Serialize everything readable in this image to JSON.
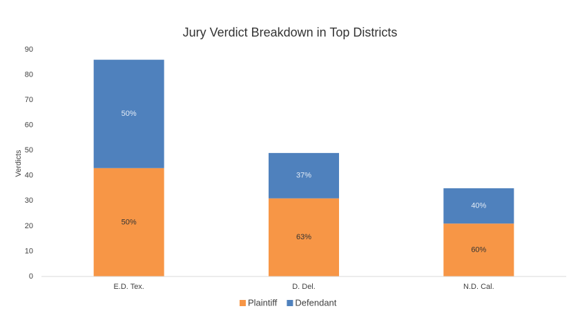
{
  "chart_data": {
    "type": "stacked-bar",
    "title": "Jury Verdict Breakdown in Top Districts",
    "y_label": "Verdicts",
    "categories": [
      "E.D. Tex.",
      "D. Del.",
      "N.D. Cal."
    ],
    "series": [
      {
        "name": "Plaintiff",
        "color": "#f79646",
        "values": [
          43,
          31,
          21
        ],
        "data_labels": [
          "50%",
          "63%",
          "60%"
        ],
        "label_color": "#333333"
      },
      {
        "name": "Defendant",
        "color": "#4f81bd",
        "values": [
          43,
          18,
          14
        ],
        "data_labels": [
          "50%",
          "37%",
          "40%"
        ],
        "label_color": "#e4ecf6"
      }
    ],
    "ylim": [
      0,
      90
    ],
    "yticks": [
      0,
      10,
      20,
      30,
      40,
      50,
      60,
      70,
      80,
      90
    ],
    "grid": false,
    "legend": "bottom"
  }
}
